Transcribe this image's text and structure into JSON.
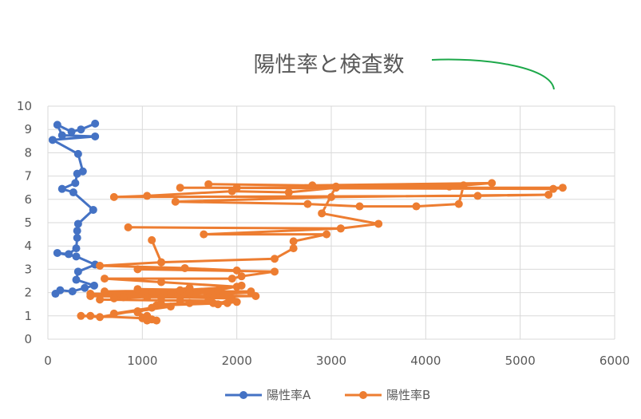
{
  "chart_data": {
    "type": "scatter",
    "title": "陽性率と検査数",
    "xlim": [
      0,
      6000
    ],
    "ylim": [
      0,
      10
    ],
    "x_ticks": [
      "0",
      "1000",
      "2000",
      "3000",
      "4000",
      "5000",
      "6000"
    ],
    "y_ticks": [
      "0",
      "1",
      "2",
      "3",
      "4",
      "5",
      "6",
      "7",
      "8",
      "9",
      "10"
    ],
    "grid": true,
    "legend_position": "bottom",
    "series": [
      {
        "name": "陽性率A",
        "color": "#4472C4",
        "points": [
          [
            500,
            9.25
          ],
          [
            350,
            9.0
          ],
          [
            250,
            8.9
          ],
          [
            100,
            9.2
          ],
          [
            150,
            8.75
          ],
          [
            500,
            8.7
          ],
          [
            50,
            8.55
          ],
          [
            320,
            7.95
          ],
          [
            370,
            7.2
          ],
          [
            310,
            7.1
          ],
          [
            290,
            6.7
          ],
          [
            150,
            6.45
          ],
          [
            270,
            6.3
          ],
          [
            480,
            5.55
          ],
          [
            320,
            4.95
          ],
          [
            310,
            4.65
          ],
          [
            310,
            4.35
          ],
          [
            300,
            3.9
          ],
          [
            220,
            3.65
          ],
          [
            100,
            3.7
          ],
          [
            300,
            3.55
          ],
          [
            500,
            3.2
          ],
          [
            320,
            2.9
          ],
          [
            300,
            2.55
          ],
          [
            490,
            2.3
          ],
          [
            390,
            2.2
          ],
          [
            260,
            2.05
          ],
          [
            130,
            2.1
          ],
          [
            80,
            1.95
          ]
        ]
      },
      {
        "name": "陽性率B",
        "color": "#ED7D31",
        "points": [
          [
            1700,
            6.65
          ],
          [
            2800,
            6.6
          ],
          [
            4700,
            6.7
          ],
          [
            4250,
            6.55
          ],
          [
            2000,
            6.5
          ],
          [
            1400,
            6.5
          ],
          [
            5350,
            6.45
          ],
          [
            5450,
            6.5
          ],
          [
            3050,
            6.5
          ],
          [
            2550,
            6.3
          ],
          [
            1950,
            6.35
          ],
          [
            1050,
            6.15
          ],
          [
            700,
            6.1
          ],
          [
            4550,
            6.15
          ],
          [
            5300,
            6.2
          ],
          [
            3000,
            6.1
          ],
          [
            1350,
            5.9
          ],
          [
            2750,
            5.8
          ],
          [
            3300,
            5.7
          ],
          [
            3900,
            5.7
          ],
          [
            4350,
            5.8
          ],
          [
            4400,
            6.6
          ],
          [
            3050,
            6.55
          ],
          [
            2900,
            5.4
          ],
          [
            3500,
            4.95
          ],
          [
            3100,
            4.75
          ],
          [
            850,
            4.8
          ],
          [
            3100,
            4.75
          ],
          [
            1650,
            4.5
          ],
          [
            2950,
            4.5
          ],
          [
            2600,
            4.2
          ],
          [
            2600,
            3.9
          ],
          [
            2400,
            3.45
          ],
          [
            1200,
            3.3
          ],
          [
            1100,
            4.25
          ],
          [
            1200,
            3.3
          ],
          [
            550,
            3.15
          ],
          [
            1450,
            3.05
          ],
          [
            2000,
            2.95
          ],
          [
            950,
            3.0
          ],
          [
            2400,
            2.9
          ],
          [
            2050,
            2.7
          ],
          [
            1950,
            2.6
          ],
          [
            600,
            2.6
          ],
          [
            1200,
            2.45
          ],
          [
            2000,
            2.25
          ],
          [
            1400,
            2.1
          ],
          [
            600,
            2.05
          ],
          [
            2150,
            2.05
          ],
          [
            1300,
            1.95
          ],
          [
            450,
            1.95
          ],
          [
            2200,
            1.85
          ],
          [
            800,
            1.8
          ],
          [
            1700,
            1.8
          ],
          [
            1750,
            1.55
          ],
          [
            1400,
            1.65
          ],
          [
            550,
            1.7
          ],
          [
            1700,
            1.65
          ],
          [
            1900,
            1.55
          ],
          [
            1150,
            1.45
          ],
          [
            1200,
            1.5
          ],
          [
            1300,
            1.4
          ],
          [
            950,
            1.2
          ],
          [
            700,
            1.1
          ],
          [
            1100,
            1.35
          ],
          [
            550,
            0.95
          ],
          [
            350,
            1.0
          ],
          [
            450,
            1.0
          ],
          [
            1000,
            0.9
          ],
          [
            1050,
            1.0
          ],
          [
            1050,
            0.8
          ],
          [
            1150,
            0.8
          ],
          [
            1100,
            0.85
          ],
          [
            950,
            1.15
          ],
          [
            1200,
            1.5
          ],
          [
            1500,
            1.55
          ],
          [
            2000,
            1.6
          ],
          [
            1800,
            1.5
          ],
          [
            1950,
            1.75
          ],
          [
            1200,
            1.8
          ],
          [
            450,
            1.85
          ],
          [
            2150,
            2.0
          ],
          [
            700,
            1.75
          ],
          [
            1500,
            2.2
          ],
          [
            1100,
            2.0
          ],
          [
            1500,
            2.0
          ],
          [
            950,
            2.15
          ],
          [
            1800,
            2.1
          ],
          [
            2050,
            2.3
          ],
          [
            1050,
            1.8
          ]
        ]
      }
    ]
  }
}
